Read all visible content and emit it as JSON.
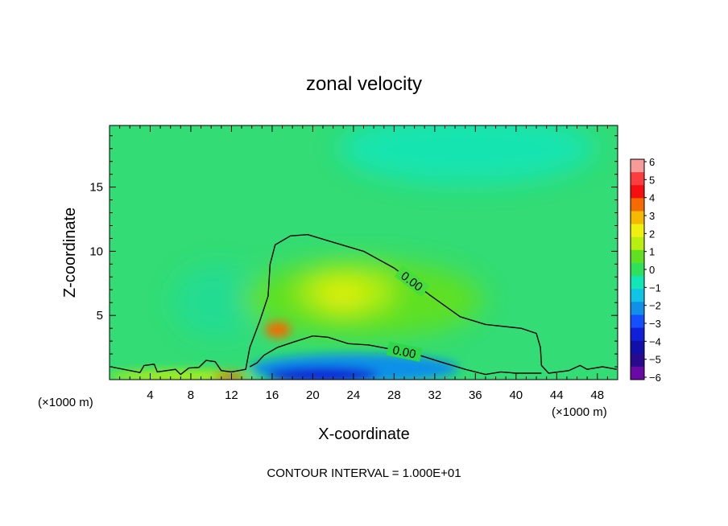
{
  "chart_data": {
    "type": "heatmap",
    "title": "zonal velocity",
    "xlabel": "X-coordinate",
    "ylabel": "Z-coordinate",
    "x_unit_left": "(×1000 m)",
    "x_unit_right": "(×1000 m)",
    "footer": "CONTOUR INTERVAL = 1.000E+01",
    "xlim": [
      0,
      50
    ],
    "ylim": [
      0,
      19.8
    ],
    "x_ticks": [
      4,
      8,
      12,
      16,
      20,
      24,
      28,
      32,
      36,
      40,
      44,
      48
    ],
    "y_ticks": [
      5,
      10,
      15
    ],
    "colorbar": {
      "levels": [
        "6",
        "5",
        "4",
        "3",
        "2",
        "1",
        "0",
        "−1",
        "−2",
        "−3",
        "−4",
        "−5",
        "−6"
      ],
      "colors": [
        "#f79a9a",
        "#fa3d3d",
        "#f50f0f",
        "#f46b00",
        "#f5b900",
        "#f0f010",
        "#b8ee10",
        "#5fe020",
        "#2fe05a",
        "#12e6b6",
        "#10c4e6",
        "#1090e8",
        "#1450ff",
        "#1020d8",
        "#1010a8",
        "#280a8c",
        "#6a0aa6"
      ]
    },
    "contours": [
      {
        "label": "0.00",
        "points": [
          [
            0.1,
            1.0
          ],
          [
            3,
            0.55
          ],
          [
            3.4,
            1.1
          ],
          [
            4.4,
            1.2
          ],
          [
            4.7,
            0.6
          ],
          [
            6.5,
            0.8
          ],
          [
            7.0,
            0.4
          ],
          [
            7.8,
            0.9
          ],
          [
            8.8,
            0.95
          ],
          [
            9.5,
            1.5
          ],
          [
            10.4,
            1.4
          ],
          [
            11.0,
            0.7
          ],
          [
            12.0,
            0.6
          ],
          [
            13.4,
            0.8
          ],
          [
            13.8,
            2.5
          ],
          [
            14.8,
            4.6
          ],
          [
            15.6,
            6.5
          ],
          [
            15.8,
            9.0
          ],
          [
            16.3,
            10.5
          ],
          [
            17.8,
            11.2
          ],
          [
            19.5,
            11.3
          ],
          [
            22.0,
            10.7
          ],
          [
            25.0,
            10.0
          ],
          [
            28.0,
            8.7
          ],
          [
            31.5,
            6.6
          ],
          [
            34.5,
            4.9
          ],
          [
            37.0,
            4.3
          ],
          [
            40.5,
            4.0
          ],
          [
            42.0,
            3.6
          ],
          [
            42.4,
            2.5
          ],
          [
            42.5,
            1.1
          ],
          [
            43.2,
            0.5
          ],
          [
            45.2,
            0.7
          ],
          [
            46.3,
            1.1
          ],
          [
            47.0,
            0.8
          ],
          [
            48.5,
            1.0
          ],
          [
            49.9,
            0.8
          ]
        ]
      },
      {
        "label": "0.00",
        "points": [
          [
            13.8,
            1.0
          ],
          [
            14.5,
            1.3
          ],
          [
            15.2,
            1.9
          ],
          [
            16.5,
            2.5
          ],
          [
            18.0,
            2.9
          ],
          [
            20.0,
            3.4
          ],
          [
            21.5,
            3.3
          ],
          [
            23.5,
            2.8
          ],
          [
            25.5,
            2.7
          ],
          [
            27.5,
            2.4
          ],
          [
            30.5,
            1.9
          ],
          [
            32.5,
            1.4
          ],
          [
            35.0,
            0.8
          ],
          [
            37.0,
            0.4
          ],
          [
            38.5,
            0.6
          ],
          [
            40.0,
            0.5
          ],
          [
            42.5,
            0.5
          ]
        ]
      }
    ]
  }
}
